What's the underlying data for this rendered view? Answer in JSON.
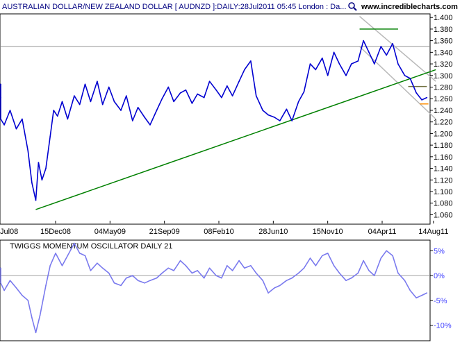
{
  "header": {
    "title": "AUSTRALIAN DOLLAR/NEW ZEALAND DOLLAR [ AUDNZD ]:DAILY:28Jul2011 05:45 London : Da...",
    "site": "www.incrediblecharts.com",
    "magnifier_icon": "magnifier-icon"
  },
  "colors": {
    "price_line": "#0000d0",
    "oscillator_line": "#7a7aee",
    "trendline": "#008000",
    "channel": "#b8b8b8",
    "resistance": "#b8b8b8",
    "target_orange": "#ff8c00",
    "target_dark": "#707040",
    "zero_line": "#a0a0a0",
    "grid": "#808080"
  },
  "chart_data": [
    {
      "type": "line",
      "title": "AUSTRALIAN DOLLAR/NEW ZEALAND DOLLAR [ AUDNZD ]:DAILY:28Jul2011 05:45 London : Da...",
      "x_tick_labels": [
        "Jul08",
        "15Dec08",
        "04May09",
        "21Sep09",
        "08Feb10",
        "28Jun10",
        "15Nov10",
        "04Apr11",
        "14Aug11"
      ],
      "x_tick_dates": [
        "2008-07-28",
        "2008-12-15",
        "2009-05-04",
        "2009-09-21",
        "2010-02-08",
        "2010-06-28",
        "2010-11-15",
        "2011-04-04",
        "2011-08-14"
      ],
      "y_tick_labels": [
        "1.400",
        "1.380",
        "1.360",
        "1.340",
        "1.320",
        "1.300",
        "1.280",
        "1.260",
        "1.240",
        "1.220",
        "1.200",
        "1.180",
        "1.160",
        "1.140",
        "1.120",
        "1.100",
        "1.080",
        "1.060"
      ],
      "ylim": [
        1.045,
        1.405
      ],
      "grid": false,
      "series": [
        {
          "x": [
            "2008-06-20",
            "2008-07-05",
            "2008-07-20",
            "2008-08-05",
            "2008-08-20",
            "2008-09-05",
            "2008-09-20",
            "2008-10-05",
            "2008-10-15",
            "2008-10-25",
            "2008-11-01",
            "2008-11-10",
            "2008-11-20",
            "2008-12-01",
            "2008-12-10",
            "2008-12-20",
            "2009-01-01",
            "2009-01-15",
            "2009-02-01",
            "2009-02-15",
            "2009-03-01",
            "2009-03-15",
            "2009-04-01",
            "2009-04-15",
            "2009-05-01",
            "2009-05-15",
            "2009-06-01",
            "2009-06-15",
            "2009-07-01",
            "2009-07-15",
            "2009-08-01",
            "2009-08-15",
            "2009-09-01",
            "2009-09-15",
            "2009-10-01",
            "2009-10-15",
            "2009-11-01",
            "2009-11-15",
            "2009-12-01",
            "2009-12-15",
            "2010-01-01",
            "2010-01-15",
            "2010-02-01",
            "2010-02-15",
            "2010-03-01",
            "2010-03-15",
            "2010-04-01",
            "2010-04-15",
            "2010-05-01",
            "2010-05-15",
            "2010-06-01",
            "2010-06-15",
            "2010-07-01",
            "2010-07-15",
            "2010-08-01",
            "2010-08-15",
            "2010-09-01",
            "2010-09-15",
            "2010-10-01",
            "2010-10-15",
            "2010-11-01",
            "2010-11-15",
            "2010-12-01",
            "2010-12-15",
            "2011-01-01",
            "2011-01-15",
            "2011-02-01",
            "2011-02-15",
            "2011-03-01",
            "2011-03-15",
            "2011-04-01",
            "2011-04-15",
            "2011-05-01",
            "2011-05-15",
            "2011-06-01",
            "2011-06-15",
            "2011-07-01",
            "2011-07-15",
            "2011-07-28"
          ],
          "values": [
            1.285,
            1.262,
            1.225,
            1.215,
            1.24,
            1.208,
            1.225,
            1.17,
            1.115,
            1.085,
            1.15,
            1.12,
            1.14,
            1.195,
            1.24,
            1.23,
            1.255,
            1.225,
            1.265,
            1.25,
            1.285,
            1.255,
            1.29,
            1.25,
            1.28,
            1.255,
            1.24,
            1.265,
            1.222,
            1.245,
            1.228,
            1.215,
            1.24,
            1.26,
            1.28,
            1.255,
            1.27,
            1.275,
            1.252,
            1.268,
            1.262,
            1.29,
            1.275,
            1.262,
            1.282,
            1.265,
            1.29,
            1.31,
            1.325,
            1.265,
            1.24,
            1.232,
            1.228,
            1.222,
            1.242,
            1.222,
            1.255,
            1.272,
            1.32,
            1.31,
            1.33,
            1.3,
            1.34,
            1.32,
            1.3,
            1.32,
            1.325,
            1.36,
            1.34,
            1.32,
            1.35,
            1.335,
            1.355,
            1.32,
            1.3,
            1.295,
            1.27,
            1.258,
            1.262
          ]
        }
      ],
      "annotations": {
        "trendline": {
          "from": {
            "x": "2008-10-25",
            "y": 1.069
          },
          "to": {
            "x": "2011-08-20",
            "y": 1.31
          }
        },
        "resistance_line": {
          "y": 1.35
        },
        "top_line": {
          "y": 1.38,
          "x_from": "2011-02-05",
          "x_to": "2011-05-15"
        },
        "channel_upper": {
          "from": {
            "x": "2011-02-05",
            "y": 1.402
          },
          "to": {
            "x": "2011-08-20",
            "y": 1.29
          }
        },
        "channel_lower": {
          "from": {
            "x": "2011-02-05",
            "y": 1.35
          },
          "to": {
            "x": "2011-08-20",
            "y": 1.225
          }
        },
        "support_segment": {
          "y": 1.281,
          "x_from": "2011-06-10",
          "x_to": "2011-07-28"
        },
        "target_segment": {
          "y": 1.251,
          "x_from": "2011-07-10",
          "x_to": "2011-08-01"
        }
      }
    },
    {
      "type": "line",
      "title": "TWIGGS MOMENTUM OSCILLATOR DAILY 21",
      "y_tick_labels": [
        "5%",
        "0%",
        "-5%",
        "-10%"
      ],
      "ylim": [
        -13,
        7
      ],
      "zero_line": true,
      "series": [
        {
          "x": [
            "2008-06-20",
            "2008-07-05",
            "2008-07-20",
            "2008-08-05",
            "2008-08-20",
            "2008-09-05",
            "2008-09-20",
            "2008-10-05",
            "2008-10-15",
            "2008-10-25",
            "2008-11-05",
            "2008-11-20",
            "2008-12-01",
            "2008-12-15",
            "2009-01-01",
            "2009-01-15",
            "2009-02-01",
            "2009-02-15",
            "2009-03-01",
            "2009-03-15",
            "2009-04-01",
            "2009-04-15",
            "2009-05-01",
            "2009-05-15",
            "2009-06-01",
            "2009-06-15",
            "2009-07-01",
            "2009-07-15",
            "2009-08-01",
            "2009-08-15",
            "2009-09-01",
            "2009-09-15",
            "2009-10-01",
            "2009-10-15",
            "2009-11-01",
            "2009-11-15",
            "2009-12-01",
            "2009-12-15",
            "2010-01-01",
            "2010-01-15",
            "2010-02-01",
            "2010-02-15",
            "2010-03-01",
            "2010-03-15",
            "2010-04-01",
            "2010-04-15",
            "2010-05-01",
            "2010-05-15",
            "2010-06-01",
            "2010-06-15",
            "2010-07-01",
            "2010-07-15",
            "2010-08-01",
            "2010-08-15",
            "2010-09-01",
            "2010-09-15",
            "2010-10-01",
            "2010-10-15",
            "2010-11-01",
            "2010-11-15",
            "2010-12-01",
            "2010-12-15",
            "2011-01-01",
            "2011-01-15",
            "2011-02-01",
            "2011-02-15",
            "2011-03-01",
            "2011-03-15",
            "2011-04-01",
            "2011-04-15",
            "2011-05-01",
            "2011-05-15",
            "2011-06-01",
            "2011-06-15",
            "2011-07-01",
            "2011-07-15",
            "2011-07-28"
          ],
          "values": [
            1.5,
            -0.5,
            -1.5,
            -3.0,
            -1.0,
            -2.5,
            -4.0,
            -5.0,
            -8.5,
            -11.5,
            -8.0,
            -2.0,
            2.0,
            4.5,
            2.0,
            4.0,
            6.5,
            4.5,
            4.0,
            1.0,
            2.5,
            1.5,
            0.5,
            -1.5,
            -2.0,
            -0.5,
            0.0,
            -1.0,
            -1.5,
            -1.0,
            -0.5,
            0.5,
            1.5,
            1.0,
            3.0,
            2.0,
            0.5,
            1.0,
            -0.5,
            1.5,
            0.0,
            -0.5,
            2.0,
            1.0,
            3.0,
            1.5,
            2.0,
            0.5,
            -1.0,
            -3.5,
            -2.5,
            -2.0,
            -1.0,
            -0.5,
            0.5,
            1.5,
            3.5,
            2.0,
            4.0,
            4.5,
            2.0,
            0.5,
            -1.0,
            -0.5,
            0.5,
            3.0,
            1.0,
            0.0,
            3.5,
            5.0,
            4.0,
            0.5,
            -1.0,
            -3.0,
            -4.5,
            -4.0,
            -3.5
          ]
        }
      ]
    }
  ]
}
